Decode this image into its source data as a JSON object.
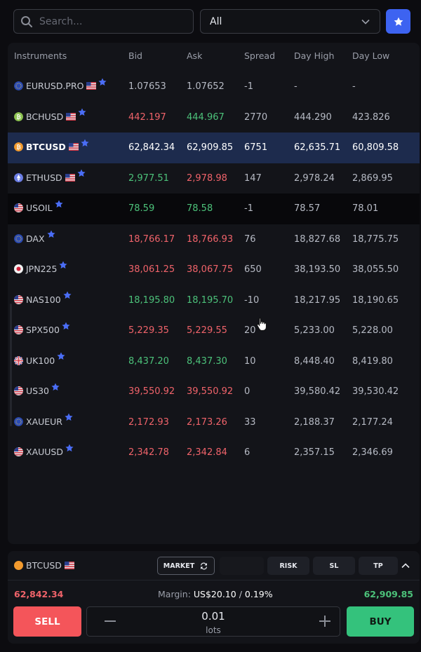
{
  "search": {
    "placeholder": "Search..."
  },
  "filter": {
    "selected": "All"
  },
  "table": {
    "headers": {
      "instrument": "Instruments",
      "bid": "Bid",
      "ask": "Ask",
      "spread": "Spread",
      "high": "Day High",
      "low": "Day Low"
    },
    "rows": [
      {
        "symbol": "EURUSD.PRO",
        "icon": "eu",
        "bid": "1.07653",
        "ask": "1.07652",
        "spread": "-1",
        "high": "-",
        "low": "-",
        "bid_dir": "neutral",
        "ask_dir": "neutral"
      },
      {
        "symbol": "BCHUSD",
        "icon": "bch",
        "bid": "442.197",
        "ask": "444.967",
        "spread": "2770",
        "high": "444.290",
        "low": "423.826",
        "bid_dir": "down",
        "ask_dir": "up"
      },
      {
        "symbol": "BTCUSD",
        "icon": "btc",
        "bid": "62,842.34",
        "ask": "62,909.85",
        "spread": "6751",
        "high": "62,635.71",
        "low": "60,809.58",
        "bid_dir": "down",
        "ask_dir": "down",
        "selected": true
      },
      {
        "symbol": "ETHUSD",
        "icon": "eth",
        "bid": "2,977.51",
        "ask": "2,978.98",
        "spread": "147",
        "high": "2,978.24",
        "low": "2,869.95",
        "bid_dir": "up",
        "ask_dir": "down"
      },
      {
        "symbol": "USOIL",
        "icon": "us",
        "bid": "78.59",
        "ask": "78.58",
        "spread": "-1",
        "high": "78.57",
        "low": "78.01",
        "bid_dir": "up",
        "ask_dir": "up",
        "dark": true
      },
      {
        "symbol": "DAX",
        "icon": "eu",
        "bid": "18,766.17",
        "ask": "18,766.93",
        "spread": "76",
        "high": "18,827.68",
        "low": "18,775.75",
        "bid_dir": "down",
        "ask_dir": "down"
      },
      {
        "symbol": "JPN225",
        "icon": "jp",
        "bid": "38,061.25",
        "ask": "38,067.75",
        "spread": "650",
        "high": "38,193.50",
        "low": "38,055.50",
        "bid_dir": "down",
        "ask_dir": "down"
      },
      {
        "symbol": "NAS100",
        "icon": "us",
        "bid": "18,195.80",
        "ask": "18,195.70",
        "spread": "-10",
        "high": "18,217.95",
        "low": "18,190.65",
        "bid_dir": "up",
        "ask_dir": "up"
      },
      {
        "symbol": "SPX500",
        "icon": "us",
        "bid": "5,229.35",
        "ask": "5,229.55",
        "spread": "20",
        "high": "5,233.00",
        "low": "5,228.00",
        "bid_dir": "down",
        "ask_dir": "down"
      },
      {
        "symbol": "UK100",
        "icon": "uk",
        "bid": "8,437.20",
        "ask": "8,437.30",
        "spread": "10",
        "high": "8,448.40",
        "low": "8,419.80",
        "bid_dir": "up",
        "ask_dir": "up"
      },
      {
        "symbol": "US30",
        "icon": "us",
        "bid": "39,550.92",
        "ask": "39,550.92",
        "spread": "0",
        "high": "39,580.42",
        "low": "39,530.42",
        "bid_dir": "down",
        "ask_dir": "down"
      },
      {
        "symbol": "XAUEUR",
        "icon": "eu",
        "bid": "2,172.93",
        "ask": "2,173.26",
        "spread": "33",
        "high": "2,188.37",
        "low": "2,177.24",
        "bid_dir": "down",
        "ask_dir": "down"
      },
      {
        "symbol": "XAUUSD",
        "icon": "us",
        "bid": "2,342.78",
        "ask": "2,342.84",
        "spread": "6",
        "high": "2,357.15",
        "low": "2,346.69",
        "bid_dir": "down",
        "ask_dir": "down"
      }
    ]
  },
  "trade": {
    "symbol": "BTCUSD",
    "market_label": "MARKET",
    "risk_label": "RISK",
    "sl_label": "SL",
    "tp_label": "TP",
    "sell_price": "62,842.34",
    "buy_price": "62,909.85",
    "margin_label": "Margin:",
    "margin_value": "US$20.10",
    "margin_sep": "/",
    "margin_pct": "0.19%",
    "sell_label": "SELL",
    "buy_label": "BUY",
    "lots_value": "0.01",
    "lots_label": "lots"
  },
  "colors": {
    "accent": "#3d63f1",
    "up": "#4cc27a",
    "down": "#f0636a",
    "sell": "#f4555a",
    "buy": "#34c27c",
    "selected_row": "#1d2b4d"
  }
}
